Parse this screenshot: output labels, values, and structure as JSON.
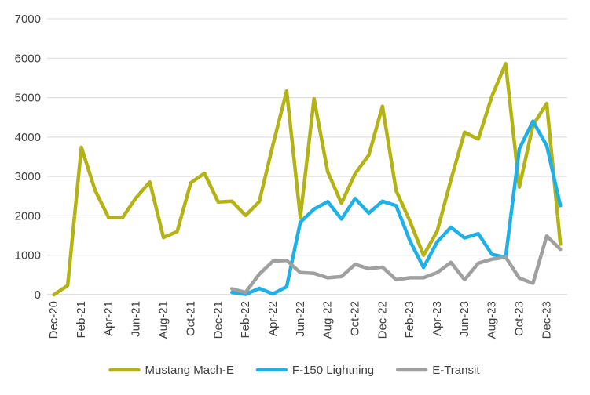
{
  "chart_data": {
    "type": "line",
    "ylim": [
      0,
      7000
    ],
    "y_ticks": [
      0,
      1000,
      2000,
      3000,
      4000,
      5000,
      6000,
      7000
    ],
    "y_tick_labels": [
      "0",
      "1000",
      "2000",
      "3000",
      "4000",
      "5000",
      "6000",
      "7000"
    ],
    "grid": "horizontal",
    "legend_position": "bottom",
    "categories": [
      "Dec-20",
      "Jan-21",
      "Feb-21",
      "Mar-21",
      "Apr-21",
      "May-21",
      "Jun-21",
      "Jul-21",
      "Aug-21",
      "Sep-21",
      "Oct-21",
      "Nov-21",
      "Dec-21",
      "Jan-22",
      "Feb-22",
      "Mar-22",
      "Apr-22",
      "May-22",
      "Jun-22",
      "Jul-22",
      "Aug-22",
      "Sep-22",
      "Oct-22",
      "Nov-22",
      "Dec-22",
      "Jan-23",
      "Feb-23",
      "Mar-23",
      "Apr-23",
      "May-23",
      "Jun-23",
      "Jul-23",
      "Aug-23",
      "Sep-23",
      "Oct-23",
      "Nov-23",
      "Dec-23",
      "Jan-24"
    ],
    "x_tick_labels": [
      "Dec-20",
      "Feb-21",
      "Apr-21",
      "Jun-21",
      "Aug-21",
      "Oct-21",
      "Dec-21",
      "Feb-22",
      "Apr-22",
      "Jun-22",
      "Aug-22",
      "Oct-22",
      "Dec-22",
      "Feb-23",
      "Apr-23",
      "Jun-23",
      "Aug-23",
      "Oct-23",
      "Dec-23"
    ],
    "series": [
      {
        "name": "Mustang Mach-E",
        "color": "#b3b315",
        "values": [
          0,
          230,
          3740,
          2650,
          1950,
          1950,
          2460,
          2860,
          1450,
          1600,
          2840,
          3080,
          2350,
          2370,
          2010,
          2360,
          3800,
          5170,
          1960,
          4970,
          3120,
          2320,
          3070,
          3540,
          4780,
          2640,
          1870,
          1000,
          1610,
          2910,
          4120,
          3950,
          5040,
          5860,
          2730,
          4300,
          4850,
          1280
        ]
      },
      {
        "name": "F-150 Lightning",
        "color": "#1fb0e8",
        "values": [
          null,
          null,
          null,
          null,
          null,
          null,
          null,
          null,
          null,
          null,
          null,
          null,
          null,
          60,
          10,
          160,
          20,
          200,
          1840,
          2170,
          2360,
          1920,
          2440,
          2070,
          2370,
          2260,
          1370,
          690,
          1340,
          1710,
          1440,
          1550,
          1020,
          950,
          3700,
          4400,
          3780,
          2260
        ]
      },
      {
        "name": "E-Transit",
        "color": "#a0a0a0",
        "values": [
          null,
          null,
          null,
          null,
          null,
          null,
          null,
          null,
          null,
          null,
          null,
          null,
          null,
          150,
          60,
          520,
          850,
          870,
          560,
          540,
          430,
          460,
          770,
          660,
          700,
          380,
          430,
          430,
          560,
          820,
          380,
          800,
          900,
          950,
          420,
          290,
          1490,
          1150
        ]
      }
    ]
  }
}
